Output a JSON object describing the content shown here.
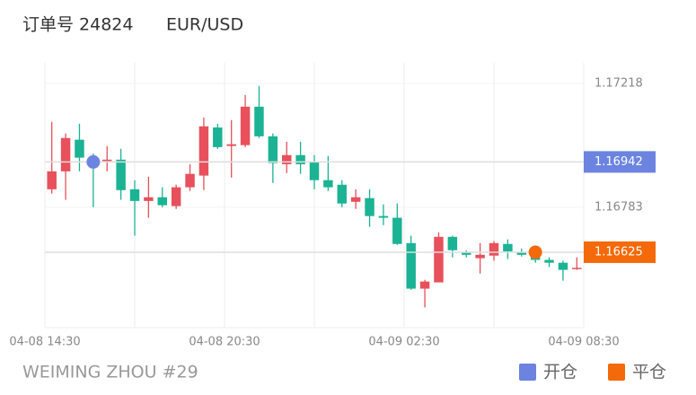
{
  "chart_data": {
    "type": "candlestick",
    "order": "订单号 24824",
    "title": "EUR/USD",
    "footer": "WEIMING ZHOU #29",
    "up_color": "#e8505b",
    "down_color": "#1bb394",
    "ylim": [
      1.1636,
      1.1729
    ],
    "yticks": [
      1.17218,
      1.16783
    ],
    "xlim": [
      -0.5,
      38.5
    ],
    "xticks": [
      {
        "value": -0.5,
        "label": "04-08 14:30"
      },
      {
        "value": 12.5,
        "label": "04-08 20:30"
      },
      {
        "value": 25.5,
        "label": "04-09 02:30"
      },
      {
        "value": 38.5,
        "label": "04-09 08:30"
      }
    ],
    "grid": true,
    "open": [
      1.16846,
      1.16909,
      1.1702,
      1.16957,
      1.16947,
      1.1695,
      1.16846,
      1.16805,
      1.16818,
      1.16787,
      1.16853,
      1.16894,
      1.17063,
      1.16998,
      1.17001,
      1.17136,
      1.17032,
      1.16934,
      1.16966,
      1.16941,
      1.16878,
      1.16862,
      1.16802,
      1.16815,
      1.16752,
      1.16746,
      1.16657,
      1.16497,
      1.16519,
      1.16679,
      1.16623,
      1.16604,
      1.16613,
      1.16654,
      1.16625,
      1.16613,
      1.16598,
      1.16588,
      1.16566
    ],
    "high": [
      1.17083,
      1.17042,
      1.17076,
      1.16972,
      1.16998,
      1.16988,
      1.16878,
      1.1689,
      1.16853,
      1.16862,
      1.16934,
      1.17098,
      1.17076,
      1.17089,
      1.17177,
      1.17209,
      1.17042,
      1.17013,
      1.17013,
      1.16966,
      1.16963,
      1.16878,
      1.16846,
      1.16846,
      1.16793,
      1.16796,
      1.16683,
      1.16528,
      1.16695,
      1.16683,
      1.16632,
      1.16657,
      1.16664,
      1.1667,
      1.16638,
      1.16632,
      1.16607,
      1.16595,
      1.16607
    ],
    "low": [
      1.16831,
      1.16809,
      1.16909,
      1.16783,
      1.16909,
      1.16809,
      1.16683,
      1.16746,
      1.16783,
      1.16777,
      1.1684,
      1.16843,
      1.16988,
      1.16887,
      1.16994,
      1.17026,
      1.16868,
      1.16903,
      1.169,
      1.16846,
      1.1684,
      1.16783,
      1.16777,
      1.16714,
      1.1672,
      1.16651,
      1.16493,
      1.16431,
      1.16519,
      1.16607,
      1.16607,
      1.1655,
      1.16595,
      1.16601,
      1.1661,
      1.16588,
      1.16573,
      1.16525,
      1.16563
    ],
    "close": [
      1.16909,
      1.17026,
      1.16957,
      1.16941,
      1.1695,
      1.16843,
      1.16805,
      1.16818,
      1.1679,
      1.16853,
      1.169,
      1.17067,
      1.16994,
      1.17004,
      1.17136,
      1.17032,
      1.16938,
      1.16966,
      1.16934,
      1.16878,
      1.16853,
      1.16796,
      1.16818,
      1.16752,
      1.16746,
      1.16654,
      1.16497,
      1.16522,
      1.16679,
      1.16632,
      1.16616,
      1.16616,
      1.16657,
      1.16628,
      1.16616,
      1.16598,
      1.16588,
      1.16563,
      1.1657
    ],
    "markers": [
      {
        "name": "开仓",
        "color": "#6c83e0",
        "x": 3,
        "value": 1.16942
      },
      {
        "name": "平仓",
        "color": "#f46a0a",
        "x": 35,
        "value": 1.16625
      }
    ]
  }
}
